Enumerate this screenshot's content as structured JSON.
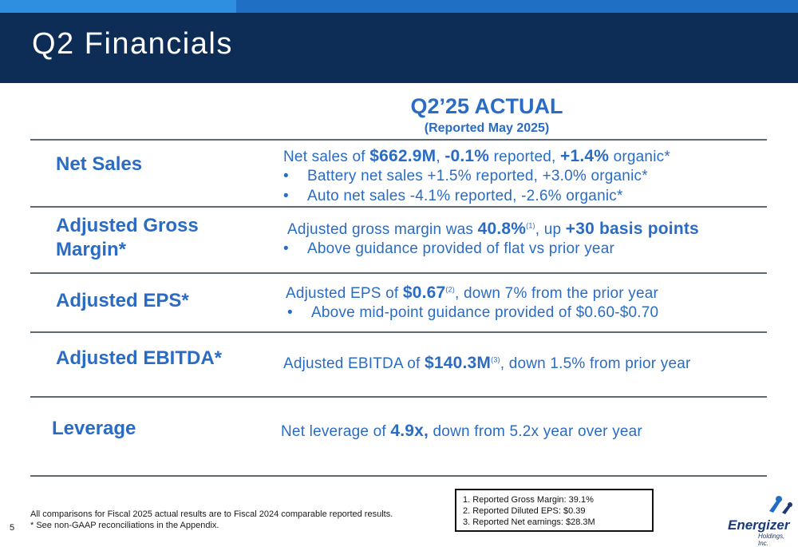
{
  "slide": {
    "title": "Q2 Financials",
    "page_number": "5"
  },
  "column": {
    "title": "Q2’25 ACTUAL",
    "subtitle": "(Reported May 2025)"
  },
  "rows": {
    "net_sales": {
      "label": "Net Sales",
      "l1_a": "Net sales of ",
      "l1_b": "$662.9M",
      "l1_c": ", ",
      "l1_d": "-0.1%",
      "l1_e": " reported, ",
      "l1_f": "+1.4%",
      "l1_g": " organic*",
      "bullet_char": "•",
      "b1": "Battery net sales +1.5% reported, +3.0% organic*",
      "b2": "Auto net sales -4.1% reported, -2.6% organic*"
    },
    "gross_margin": {
      "label_1": "Adjusted Gross",
      "label_2": "Margin*",
      "l1_a": "Adjusted gross margin was ",
      "l1_b": "40.8%",
      "l1_sup": "(1)",
      "l1_c": ", up ",
      "l1_d": "+30 basis points",
      "b1": "Above guidance provided of flat vs prior year"
    },
    "eps": {
      "label": "Adjusted EPS*",
      "l1_a": "Adjusted EPS of ",
      "l1_b": "$0.67",
      "l1_sup": "(2)",
      "l1_c": ", down 7% from the prior year",
      "b1": "Above mid-point guidance provided of $0.60-$0.70"
    },
    "ebitda": {
      "label": "Adjusted EBITDA*",
      "l1_a": "Adjusted EBITDA of ",
      "l1_b": "$140.3M",
      "l1_sup": "(3)",
      "l1_c": ", down 1.5% from prior year"
    },
    "leverage": {
      "label": "Leverage",
      "l1_a": "Net leverage of ",
      "l1_b": "4.9x,",
      "l1_c": " down from 5.2x year over year"
    }
  },
  "footer": {
    "note_1": "All comparisons for Fiscal 2025 actual results are to Fiscal 2024 comparable reported results.",
    "note_2": "* See non-GAAP reconciliations in the Appendix."
  },
  "notes_box": {
    "items": [
      "1.   Reported Gross Margin: 39.1%",
      "2.   Reported Diluted EPS: $0.39",
      "3.   Reported Net earnings: $28.3M"
    ]
  },
  "logo": {
    "name": "Energizer",
    "sub": "Holdings, Inc."
  },
  "colors": {
    "header_bg": "#0d2d57",
    "accent_blue": "#2a6cc4",
    "top_bar_light": "#2e8fe0",
    "top_bar_dark": "#1f6fc5"
  }
}
